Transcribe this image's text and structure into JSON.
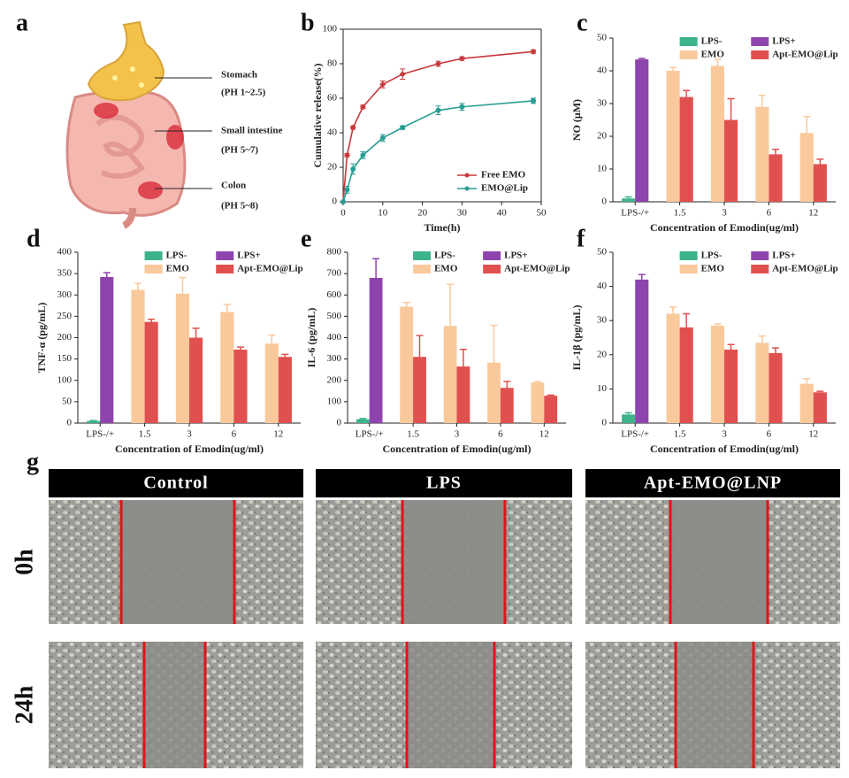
{
  "illustration": {
    "label": "a",
    "regions": [
      {
        "name": "Stomach",
        "ph": "(PH 1~2.5)"
      },
      {
        "name": "Small intestine",
        "ph": "(PH 5~7)"
      },
      {
        "name": "Colon",
        "ph": "(PH 5~8)"
      }
    ]
  },
  "chart_data": [
    {
      "type": "line",
      "label": "b",
      "xlabel": "Time(h)",
      "ylabel": "Cumulative release(%)",
      "x": [
        0,
        1,
        2.5,
        5,
        10,
        15,
        24,
        30,
        48
      ],
      "xlim": [
        0,
        50
      ],
      "xticks": [
        0,
        10,
        20,
        30,
        40,
        50
      ],
      "ylim": [
        0,
        100
      ],
      "yticks": [
        0,
        20,
        40,
        60,
        80,
        100
      ],
      "legend": "lower right",
      "series": [
        {
          "name": "Free EMO",
          "color": "#c8393b",
          "marker": "diamond",
          "values": [
            0,
            27,
            43,
            55,
            68,
            74,
            80,
            83,
            87
          ],
          "error": [
            0,
            1,
            1,
            1,
            2,
            3,
            1.5,
            1,
            1
          ]
        },
        {
          "name": "EMO@Lip",
          "color": "#2a9d94",
          "marker": "circle",
          "values": [
            0,
            7,
            19,
            27,
            37,
            43,
            53,
            55,
            58.5
          ],
          "error": [
            0,
            2,
            3,
            2,
            2,
            1,
            2.5,
            2,
            1.5
          ]
        }
      ]
    },
    {
      "type": "bar",
      "label": "c",
      "xlabel": "Concentration of Emodin(ug/ml)",
      "ylabel": "NO (μM)",
      "categories": [
        "LPS-/+",
        "1.5",
        "3",
        "6",
        "12"
      ],
      "ylim": [
        0,
        50
      ],
      "yticks": [
        0,
        10,
        20,
        30,
        40,
        50
      ],
      "legend": "upper right",
      "series": [
        {
          "name": "LPS-",
          "color": "#3cb38a",
          "values": [
            1,
            null,
            null,
            null,
            null
          ],
          "error": [
            0.5,
            null,
            null,
            null,
            null
          ]
        },
        {
          "name": "LPS+",
          "color": "#8e44ad",
          "values": [
            43.5,
            null,
            null,
            null,
            null
          ],
          "error": [
            0.3,
            null,
            null,
            null,
            null
          ]
        },
        {
          "name": "EMO",
          "color": "#f9c99b",
          "values": [
            null,
            40,
            41.5,
            29,
            21
          ],
          "error": [
            null,
            1,
            2,
            3.5,
            5
          ]
        },
        {
          "name": "Apt-EMO@Lip",
          "color": "#e0504f",
          "values": [
            null,
            32,
            25,
            14.5,
            11.5
          ],
          "error": [
            null,
            2,
            6.5,
            1.5,
            1.5
          ]
        }
      ]
    },
    {
      "type": "bar",
      "label": "d",
      "xlabel": "Concentration of Emodin(ug/ml)",
      "ylabel": "TNF-α (pg/mL)",
      "categories": [
        "LPS-/+",
        "1.5",
        "3",
        "6",
        "12"
      ],
      "ylim": [
        0,
        400
      ],
      "yticks": [
        0,
        50,
        100,
        150,
        200,
        250,
        300,
        350,
        400
      ],
      "legend": "upper right",
      "series": [
        {
          "name": "LPS-",
          "color": "#3cb38a",
          "values": [
            5,
            null,
            null,
            null,
            null
          ],
          "error": [
            1,
            null,
            null,
            null,
            null
          ]
        },
        {
          "name": "LPS+",
          "color": "#8e44ad",
          "values": [
            342,
            null,
            null,
            null,
            null
          ],
          "error": [
            10,
            null,
            null,
            null,
            null
          ]
        },
        {
          "name": "EMO",
          "color": "#f9c99b",
          "values": [
            null,
            312,
            303,
            260,
            186
          ],
          "error": [
            null,
            15,
            38,
            18,
            20
          ]
        },
        {
          "name": "Apt-EMO@Lip",
          "color": "#e0504f",
          "values": [
            null,
            237,
            200,
            172,
            155
          ],
          "error": [
            null,
            6,
            22,
            6,
            6
          ]
        }
      ]
    },
    {
      "type": "bar",
      "label": "e",
      "xlabel": "Concentration of Emodin(ug/ml)",
      "ylabel": "IL-6 (pg/mL)",
      "categories": [
        "LPS-/+",
        "1.5",
        "3",
        "6",
        "12"
      ],
      "ylim": [
        0,
        800
      ],
      "yticks": [
        0,
        100,
        200,
        300,
        400,
        500,
        600,
        700,
        800
      ],
      "legend": "upper right",
      "series": [
        {
          "name": "LPS-",
          "color": "#3cb38a",
          "values": [
            18,
            null,
            null,
            null,
            null
          ],
          "error": [
            3,
            null,
            null,
            null,
            null
          ]
        },
        {
          "name": "LPS+",
          "color": "#8e44ad",
          "values": [
            680,
            null,
            null,
            null,
            null
          ],
          "error": [
            90,
            null,
            null,
            null,
            null
          ]
        },
        {
          "name": "EMO",
          "color": "#f9c99b",
          "values": [
            null,
            545,
            455,
            283,
            190
          ],
          "error": [
            null,
            20,
            195,
            175,
            5
          ]
        },
        {
          "name": "Apt-EMO@Lip",
          "color": "#e0504f",
          "values": [
            null,
            310,
            265,
            165,
            128
          ],
          "error": [
            null,
            100,
            80,
            30,
            3
          ]
        }
      ]
    },
    {
      "type": "bar",
      "label": "f",
      "xlabel": "Concentration of Emodin(ug/ml)",
      "ylabel": "IL-1β (pg/mL)",
      "categories": [
        "LPS-/+",
        "1.5",
        "3",
        "6",
        "12"
      ],
      "ylim": [
        0,
        50
      ],
      "yticks": [
        0,
        10,
        20,
        30,
        40,
        50
      ],
      "legend": "upper right",
      "series": [
        {
          "name": "LPS-",
          "color": "#3cb38a",
          "values": [
            2.5,
            null,
            null,
            null,
            null
          ],
          "error": [
            0.5,
            null,
            null,
            null,
            null
          ]
        },
        {
          "name": "LPS+",
          "color": "#8e44ad",
          "values": [
            42,
            null,
            null,
            null,
            null
          ],
          "error": [
            1.5,
            null,
            null,
            null,
            null
          ]
        },
        {
          "name": "EMO",
          "color": "#f9c99b",
          "values": [
            null,
            32,
            28.5,
            23.5,
            11.5
          ],
          "error": [
            null,
            2,
            0.5,
            2,
            1.5
          ]
        },
        {
          "name": "Apt-EMO@Lip",
          "color": "#e0504f",
          "values": [
            null,
            28,
            21.5,
            20.5,
            9
          ],
          "error": [
            null,
            4,
            1.5,
            1.5,
            0.3
          ]
        }
      ]
    }
  ],
  "micrographs": {
    "label": "g",
    "columns": [
      "Control",
      "LPS",
      "Apt-EMO@LNP"
    ],
    "rows": [
      "0h",
      "24h"
    ]
  }
}
